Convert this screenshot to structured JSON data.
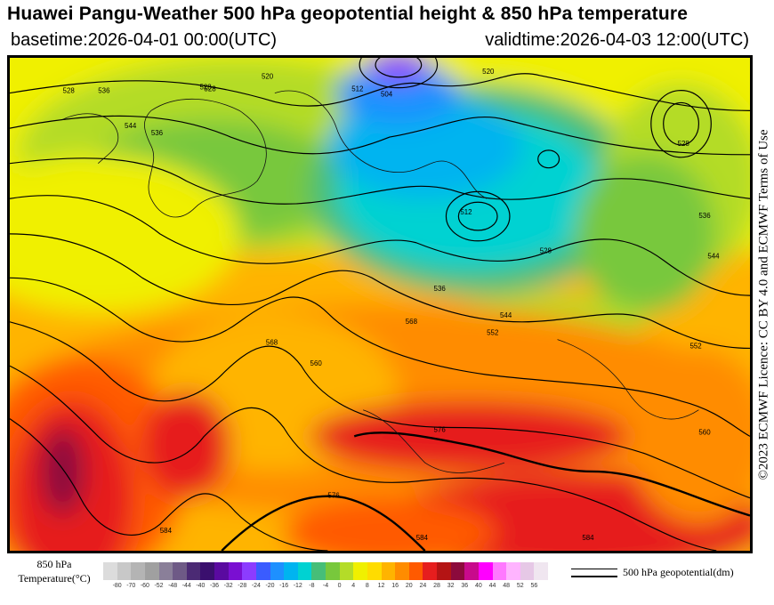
{
  "header": {
    "title": "Huawei Pangu-Weather 500 hPa geopotential height & 850 hPa temperature",
    "basetime": "basetime:2026-04-01 00:00(UTC)",
    "validtime": "validtime:2026-04-03 12:00(UTC)"
  },
  "licence": "©2023 ECMWF Licence: CC BY 4.0 and ECMWF Terms of Use",
  "legend": {
    "temperature_label_line1": "850 hPa",
    "temperature_label_line2": "Temperature(°C)",
    "ticks": [
      "-80",
      "-70",
      "-60",
      "-52",
      "-48",
      "-44",
      "-40",
      "-36",
      "-32",
      "-28",
      "-24",
      "-20",
      "-16",
      "-12",
      "-8",
      "-4",
      "0",
      "4",
      "8",
      "12",
      "16",
      "20",
      "24",
      "28",
      "32",
      "36",
      "40",
      "44",
      "48",
      "52",
      "56"
    ],
    "colors": [
      "#dcdcdc",
      "#c8c8c8",
      "#b4b4b4",
      "#a0a0a0",
      "#8a7f99",
      "#6e5a86",
      "#4b2a74",
      "#3a0f6e",
      "#5a0aa0",
      "#7a0fd2",
      "#8c3cff",
      "#3a5cff",
      "#1e90ff",
      "#00b4f0",
      "#00d2d2",
      "#46be78",
      "#78c83c",
      "#b4dc28",
      "#f0f000",
      "#ffdc00",
      "#ffb400",
      "#ff8c00",
      "#ff5a00",
      "#e61e1e",
      "#b41414",
      "#8c0a3c",
      "#c80a8c",
      "#ff00ff",
      "#ff78ff",
      "#ffb4ff",
      "#e6c8e6",
      "#f0e6f0"
    ],
    "contour_label": "500 hPa geopotential(dm)"
  },
  "map": {
    "contour_labels": [
      "528",
      "520",
      "512",
      "504",
      "528",
      "536",
      "544",
      "552",
      "560",
      "568",
      "576",
      "584",
      "584",
      "536",
      "528",
      "512",
      "520",
      "528",
      "536",
      "544",
      "552",
      "560",
      "568",
      "576",
      "584",
      "544",
      "528",
      "536"
    ]
  }
}
